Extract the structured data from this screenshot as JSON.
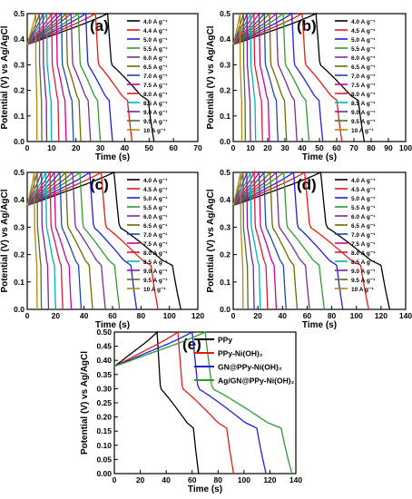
{
  "chart_data": [
    {
      "panel": "(a)",
      "type": "line",
      "xlabel": "Time (s)",
      "ylabel": "Potential (V) vs Ag/AgCl",
      "xlim": [
        0,
        70
      ],
      "ylim": [
        0,
        0.5
      ],
      "xticks": [
        "0",
        "10",
        "20",
        "30",
        "40",
        "50",
        "60",
        "70"
      ],
      "yticks": [
        "0.0",
        "0.1",
        "0.2",
        "0.3",
        "0.4",
        "0.5"
      ],
      "legend_position": "top-right",
      "series": [
        {
          "name": "4.0 A g⁻¹",
          "color": "#000000",
          "charge_time": 33,
          "total_time": 52
        },
        {
          "name": "4.4 A g⁻¹",
          "color": "#e8190f",
          "charge_time": 28,
          "total_time": 43
        },
        {
          "name": "5.0 A g⁻¹",
          "color": "#1f1fe0",
          "charge_time": 24,
          "total_time": 35
        },
        {
          "name": "5.5 A g⁻¹",
          "color": "#2f9a2f",
          "charge_time": 21,
          "total_time": 30
        },
        {
          "name": "6.0 A g⁻¹",
          "color": "#7a2c8f",
          "charge_time": 18,
          "total_time": 26
        },
        {
          "name": "6.5 A g⁻¹",
          "color": "#6b6b00",
          "charge_time": 16,
          "total_time": 22
        },
        {
          "name": "7.0 A g⁻¹",
          "color": "#1a4aa8",
          "charge_time": 14,
          "total_time": 19
        },
        {
          "name": "7.5 A g⁻¹",
          "color": "#cc0099",
          "charge_time": 12,
          "total_time": 16
        },
        {
          "name": "8.0 A g⁻¹",
          "color": "#d81b3b",
          "charge_time": 10,
          "total_time": 13
        },
        {
          "name": "8.5 A g⁻¹",
          "color": "#00b3b3",
          "charge_time": 8,
          "total_time": 10
        },
        {
          "name": "9.0 A g⁻¹",
          "color": "#7b1fa2",
          "charge_time": 6.5,
          "total_time": 8
        },
        {
          "name": "9.5 A g⁻¹",
          "color": "#556b2f",
          "charge_time": 5,
          "total_time": 6
        },
        {
          "name": "10 A g⁻¹",
          "color": "#b8860b",
          "charge_time": 3.5,
          "total_time": 4
        }
      ]
    },
    {
      "panel": "(b)",
      "type": "line",
      "xlabel": "Time (s)",
      "ylabel": "Potential (V) vs Ag/AgCl",
      "xlim": [
        0,
        100
      ],
      "ylim": [
        0,
        0.5
      ],
      "xticks": [
        "0",
        "10",
        "20",
        "30",
        "40",
        "50",
        "60",
        "70",
        "80",
        "90",
        "100"
      ],
      "yticks": [
        "0.0",
        "0.1",
        "0.2",
        "0.3",
        "0.4",
        "0.5"
      ],
      "legend_position": "top-right",
      "series": [
        {
          "name": "4.0 A g⁻¹",
          "color": "#000000",
          "charge_time": 48,
          "total_time": 76
        },
        {
          "name": "4.5 A g⁻¹",
          "color": "#e8190f",
          "charge_time": 40,
          "total_time": 63
        },
        {
          "name": "5.0 A g⁻¹",
          "color": "#1f1fe0",
          "charge_time": 34,
          "total_time": 52
        },
        {
          "name": "5.5 A g⁻¹",
          "color": "#2f9a2f",
          "charge_time": 29,
          "total_time": 44
        },
        {
          "name": "6.0 A g⁻¹",
          "color": "#7a2c8f",
          "charge_time": 25,
          "total_time": 37
        },
        {
          "name": "6.5 A g⁻¹",
          "color": "#6b6b00",
          "charge_time": 21,
          "total_time": 31
        },
        {
          "name": "7.0 A g⁻¹",
          "color": "#1a4aa8",
          "charge_time": 18,
          "total_time": 26
        },
        {
          "name": "7.5 A g⁻¹",
          "color": "#cc0099",
          "charge_time": 15,
          "total_time": 21
        },
        {
          "name": "8.0 A g⁻¹",
          "color": "#d81b3b",
          "charge_time": 12,
          "total_time": 17
        },
        {
          "name": "8.5 A g⁻¹",
          "color": "#00b3b3",
          "charge_time": 10,
          "total_time": 13
        },
        {
          "name": "9.0 A g⁻¹",
          "color": "#7b1fa2",
          "charge_time": 8,
          "total_time": 10
        },
        {
          "name": "9.5 A g⁻¹",
          "color": "#556b2f",
          "charge_time": 6,
          "total_time": 7
        },
        {
          "name": "10  A g⁻¹",
          "color": "#b8860b",
          "charge_time": 4,
          "total_time": 5
        }
      ]
    },
    {
      "panel": "(c)",
      "type": "line",
      "xlabel": "Time (s)",
      "ylabel": "Potential (V) vs Ag/AgCl",
      "xlim": [
        0,
        120
      ],
      "ylim": [
        0,
        0.5
      ],
      "xticks": [
        "0",
        "20",
        "40",
        "60",
        "80",
        "100",
        "120"
      ],
      "yticks": [
        "0.0",
        "0.1",
        "0.2",
        "0.3",
        "0.4",
        "0.5"
      ],
      "legend_position": "top-right",
      "series": [
        {
          "name": "4.0 A g⁻¹",
          "color": "#000000",
          "charge_time": 61,
          "total_time": 108
        },
        {
          "name": "4.5 A g⁻¹",
          "color": "#e8190f",
          "charge_time": 52,
          "total_time": 92
        },
        {
          "name": "5.0 A g⁻¹",
          "color": "#1f1fe0",
          "charge_time": 44,
          "total_time": 77
        },
        {
          "name": "5.5 A g⁻¹",
          "color": "#2f9a2f",
          "charge_time": 37,
          "total_time": 65
        },
        {
          "name": "6.0 A g⁻¹",
          "color": "#7a2c8f",
          "charge_time": 32,
          "total_time": 55
        },
        {
          "name": "6.5 A g⁻¹",
          "color": "#6b6b00",
          "charge_time": 27,
          "total_time": 46
        },
        {
          "name": "7.0 A g⁻¹",
          "color": "#1a4aa8",
          "charge_time": 23,
          "total_time": 38
        },
        {
          "name": "7.5 A g⁻¹",
          "color": "#cc0099",
          "charge_time": 19,
          "total_time": 31
        },
        {
          "name": "8.0 A g⁻¹",
          "color": "#d81b3b",
          "charge_time": 16,
          "total_time": 25
        },
        {
          "name": "8.5 A g⁻¹",
          "color": "#00b3b3",
          "charge_time": 13,
          "total_time": 20
        },
        {
          "name": "9.0 A g⁻¹",
          "color": "#7b1fa2",
          "charge_time": 10,
          "total_time": 15
        },
        {
          "name": "9.5 A g⁻¹",
          "color": "#556b2f",
          "charge_time": 7,
          "total_time": 10
        },
        {
          "name": "10  A g⁻¹",
          "color": "#b8860b",
          "charge_time": 5,
          "total_time": 7
        }
      ]
    },
    {
      "panel": "(d)",
      "type": "line",
      "xlabel": "Time (s)",
      "ylabel": "Potential (V) vs Ag/AgCl",
      "xlim": [
        0,
        140
      ],
      "ylim": [
        0,
        0.5
      ],
      "xticks": [
        "0",
        "20",
        "40",
        "60",
        "80",
        "100",
        "120",
        "140"
      ],
      "yticks": [
        "0.0",
        "0.1",
        "0.2",
        "0.3",
        "0.4",
        "0.5"
      ],
      "legend_position": "top-right",
      "series": [
        {
          "name": "4.0 A g⁻¹",
          "color": "#000000",
          "charge_time": 71,
          "total_time": 127
        },
        {
          "name": "4.5 A g⁻¹",
          "color": "#e8190f",
          "charge_time": 58,
          "total_time": 110
        },
        {
          "name": "5.0 A g⁻¹",
          "color": "#1f1fe0",
          "charge_time": 49,
          "total_time": 89
        },
        {
          "name": "5.5 A g⁻¹",
          "color": "#2f9a2f",
          "charge_time": 41,
          "total_time": 74
        },
        {
          "name": "6.0 A g⁻¹",
          "color": "#7a2c8f",
          "charge_time": 35,
          "total_time": 62
        },
        {
          "name": "6.5 A g⁻¹",
          "color": "#6b6b00",
          "charge_time": 30,
          "total_time": 52
        },
        {
          "name": "7.0 A g⁻¹",
          "color": "#1a4aa8",
          "charge_time": 25,
          "total_time": 43
        },
        {
          "name": "7.5 A g⁻¹",
          "color": "#cc0099",
          "charge_time": 21,
          "total_time": 35
        },
        {
          "name": "8.0 A g⁻¹",
          "color": "#d81b3b",
          "charge_time": 17,
          "total_time": 28
        },
        {
          "name": "8.5 A g⁻¹",
          "color": "#00b3b3",
          "charge_time": 14,
          "total_time": 22
        },
        {
          "name": "9.0 A g⁻¹",
          "color": "#7b1fa2",
          "charge_time": 11,
          "total_time": 17
        },
        {
          "name": "9.5 A g⁻¹",
          "color": "#556b2f",
          "charge_time": 8,
          "total_time": 12
        },
        {
          "name": "10  A g⁻¹",
          "color": "#b8860b",
          "charge_time": 6,
          "total_time": 8
        }
      ]
    },
    {
      "panel": "(e)",
      "type": "line",
      "xlabel": "Time (s)",
      "ylabel": "Potential (V) vs Ag/AgCl",
      "xlim": [
        0,
        140
      ],
      "ylim": [
        0,
        0.5
      ],
      "xticks": [
        "0",
        "20",
        "40",
        "60",
        "80",
        "100",
        "120",
        "140"
      ],
      "yticks": [
        "0.00",
        "0.05",
        "0.10",
        "0.15",
        "0.20",
        "0.25",
        "0.30",
        "0.35",
        "0.40",
        "0.45",
        "0.50"
      ],
      "legend_position": "top-right",
      "series": [
        {
          "name": "PPy",
          "color": "#000000",
          "charge_time": 33,
          "total_time": 65
        },
        {
          "name": "PPy-Ni(OH)₂",
          "color": "#e8190f",
          "charge_time": 49,
          "total_time": 92
        },
        {
          "name": "GN@PPy-Ni(OH)₂",
          "color": "#1f1fe0",
          "charge_time": 60,
          "total_time": 117
        },
        {
          "name": "Ag/GN@PPy-Ni(OH)₂",
          "color": "#2f9a2f",
          "charge_time": 70,
          "total_time": 137
        }
      ]
    }
  ]
}
